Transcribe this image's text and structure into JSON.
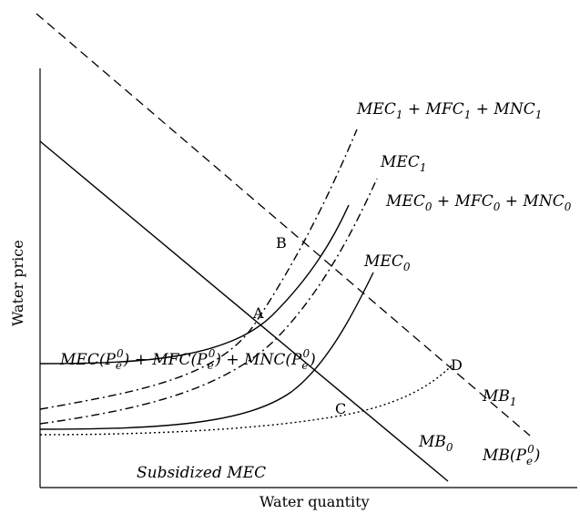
{
  "axes": {
    "x_title": "Water quantity",
    "y_title": "Water price"
  },
  "points": {
    "A": "A",
    "B": "B",
    "C": "C",
    "D": "D"
  },
  "curve_labels": {
    "mec1_mfc1_mnc1": {
      "p1": "MEC",
      "s1": "1",
      "p2": " + MFC",
      "s2": "1",
      "p3": " + MNC",
      "s3": "1"
    },
    "mec1": {
      "p1": "MEC",
      "s1": "1"
    },
    "mec0_mfc0_mnc0": {
      "p1": "MEC",
      "s1": "0",
      "p2": " + MFC",
      "s2": "0",
      "p3": " + MNC",
      "s3": "0"
    },
    "mec0": {
      "p1": "MEC",
      "s1": "0"
    },
    "mec_pe": {
      "p1": "MEC(P",
      "s1": "e",
      "u1": "0",
      "p2": ") + MFC(P",
      "s2": "e",
      "u2": "0",
      "p3": ") + MNC(P",
      "s3": "e",
      "u3": "0",
      "p4": ")"
    },
    "mb1": {
      "p1": "MB",
      "s1": "1"
    },
    "mb0": {
      "p1": "MB",
      "s1": "0"
    },
    "mb_pe": {
      "p1": "MB(P",
      "s1": "e",
      "u1": "0",
      "p2": ")"
    },
    "subsidized": "Subsidized MEC"
  },
  "line_styles": {
    "mb1": "dashed",
    "mb0": "solid",
    "mec0": "solid",
    "mec0_mfc0_mnc0": "solid",
    "mec1": "dash-dot",
    "mec1_mfc1_mnc1": "dash-dot",
    "subsidized": "dotted"
  }
}
